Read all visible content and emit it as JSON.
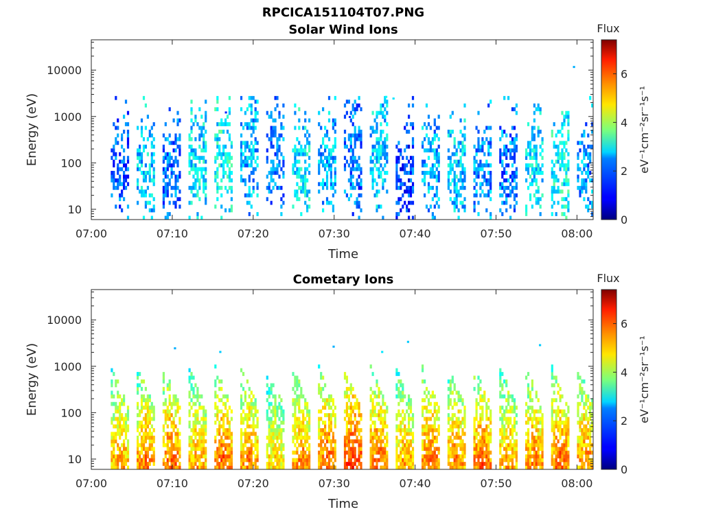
{
  "figure": {
    "title": "RPCICA151104T07.PNG"
  },
  "chart_data": [
    {
      "type": "heatmap",
      "title": "Solar Wind Ions",
      "xlabel": "Time",
      "ylabel": "Energy (eV)",
      "x_tick_labels": [
        "07:00",
        "07:10",
        "07:20",
        "07:30",
        "07:40",
        "07:50",
        "08:00"
      ],
      "x_ticks_minutes": [
        0,
        10,
        20,
        30,
        40,
        50,
        60
      ],
      "xlim_minutes": [
        0,
        62
      ],
      "y_scale": "log",
      "ylim": [
        6,
        45000
      ],
      "y_ticks": [
        10,
        100,
        1000,
        10000
      ],
      "y_tick_labels": [
        "10",
        "100",
        "1000",
        "10000"
      ],
      "colorbar": {
        "title": "Flux",
        "label": "eV⁻¹cm⁻²sr⁻¹s⁻¹",
        "range": [
          0,
          7.4
        ],
        "ticks": [
          0,
          2,
          4,
          6
        ],
        "tick_labels": [
          "0",
          "2",
          "4",
          "6"
        ],
        "colormap": "jet"
      },
      "bursts_start_minute": [
        2.4,
        5.6,
        8.8,
        12.0,
        15.2,
        18.4,
        21.6,
        24.8,
        28.0,
        31.2,
        34.4,
        37.6,
        40.8,
        44.0,
        47.2,
        50.4,
        53.6,
        56.8,
        60.0
      ],
      "burst_peak_energy_eV": [
        60,
        70,
        80,
        90,
        120,
        160,
        130,
        80,
        90,
        170,
        150,
        60,
        80,
        60,
        70,
        60,
        100,
        70,
        90
      ],
      "burst_flux_level": [
        1.6,
        2.4,
        1.8,
        2.6,
        2.8,
        2.2,
        1.8,
        2.6,
        2.2,
        1.8,
        2.4,
        1.4,
        2.2,
        2.4,
        2.0,
        1.8,
        2.6,
        2.8,
        2.0
      ],
      "isolated_points": [
        {
          "minute": 59.5,
          "energy_eV": 11500,
          "flux": 2.2
        },
        {
          "minute": 36.3,
          "energy_eV": 2600,
          "flux": 2.8
        },
        {
          "minute": 37.2,
          "energy_eV": 2400,
          "flux": 2.6
        },
        {
          "minute": 36.0,
          "energy_eV": 1000,
          "flux": 2.4
        },
        {
          "minute": 16.5,
          "energy_eV": 1200,
          "flux": 1.2
        },
        {
          "minute": 31.8,
          "energy_eV": 960,
          "flux": 1.2
        }
      ]
    },
    {
      "type": "heatmap",
      "title": "Cometary Ions",
      "xlabel": "Time",
      "ylabel": "Energy (eV)",
      "x_tick_labels": [
        "07:00",
        "07:10",
        "07:20",
        "07:30",
        "07:40",
        "07:50",
        "08:00"
      ],
      "x_ticks_minutes": [
        0,
        10,
        20,
        30,
        40,
        50,
        60
      ],
      "xlim_minutes": [
        0,
        62
      ],
      "y_scale": "log",
      "ylim": [
        6,
        45000
      ],
      "y_ticks": [
        10,
        100,
        1000,
        10000
      ],
      "y_tick_labels": [
        "10",
        "100",
        "1000",
        "10000"
      ],
      "colorbar": {
        "title": "Flux",
        "label": "eV⁻¹cm⁻²sr⁻¹s⁻¹",
        "range": [
          0,
          7.4
        ],
        "ticks": [
          0,
          2,
          4,
          6
        ],
        "tick_labels": [
          "0",
          "2",
          "4",
          "6"
        ],
        "colormap": "jet"
      },
      "bursts_start_minute": [
        2.4,
        5.6,
        8.8,
        12.0,
        15.2,
        18.4,
        21.6,
        24.8,
        28.0,
        31.2,
        34.4,
        37.6,
        40.8,
        44.0,
        47.2,
        50.4,
        53.6,
        56.8,
        60.0
      ],
      "burst_peak_energy_eV": [
        40,
        40,
        40,
        40,
        40,
        40,
        40,
        40,
        40,
        40,
        40,
        40,
        40,
        40,
        40,
        40,
        40,
        40,
        40
      ],
      "burst_flux_level": [
        5.4,
        5.6,
        5.8,
        5.4,
        5.8,
        5.6,
        5.0,
        5.6,
        5.8,
        6.2,
        5.8,
        5.4,
        5.8,
        5.6,
        5.8,
        5.4,
        5.6,
        5.8,
        5.6
      ],
      "isolated_points": [
        {
          "minute": 10.2,
          "energy_eV": 2400,
          "flux": 2.2
        },
        {
          "minute": 29.8,
          "energy_eV": 2600,
          "flux": 2.2
        },
        {
          "minute": 39.0,
          "energy_eV": 3300,
          "flux": 2.4
        },
        {
          "minute": 55.3,
          "energy_eV": 2800,
          "flux": 2.4
        },
        {
          "minute": 15.8,
          "energy_eV": 2000,
          "flux": 2.4
        },
        {
          "minute": 35.8,
          "energy_eV": 2000,
          "flux": 2.6
        }
      ]
    }
  ]
}
